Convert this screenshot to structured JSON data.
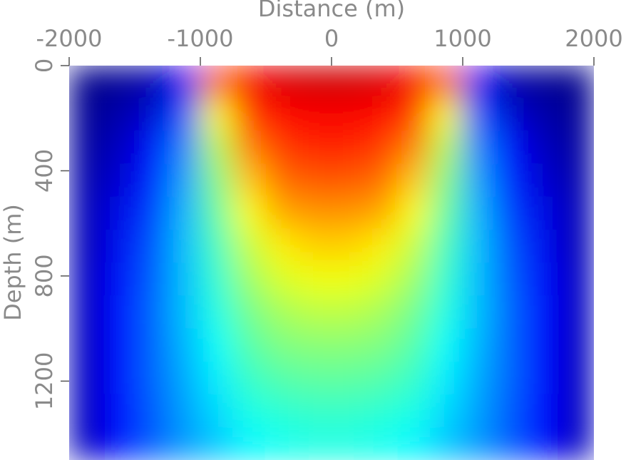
{
  "chart_data": {
    "type": "heatmap",
    "xlabel": "Distance (m)",
    "ylabel": "Depth (m)",
    "xlim": [
      -2000,
      2000
    ],
    "ylim": [
      0,
      1500
    ],
    "xticks": [
      -2000,
      -1000,
      0,
      1000,
      2000
    ],
    "yticks": [
      0,
      400,
      800,
      1200
    ],
    "colormap": "jet",
    "vlim": [
      0,
      1
    ],
    "x": [
      -1875,
      -1625,
      -1375,
      -1125,
      -875,
      -625,
      -375,
      -125,
      125,
      375,
      625,
      875,
      1125,
      1375,
      1625,
      1875
    ],
    "y": [
      62.5,
      187.5,
      312.5,
      437.5,
      562.5,
      687.5,
      812.5,
      937.5,
      1062.5,
      1187.5,
      1312.5,
      1437.5
    ],
    "values": [
      [
        0.01,
        0.02,
        0.04,
        0.12,
        0.78,
        0.88,
        0.91,
        0.92,
        0.92,
        0.91,
        0.88,
        0.78,
        0.12,
        0.04,
        0.02,
        0.01
      ],
      [
        0.02,
        0.04,
        0.08,
        0.2,
        0.62,
        0.82,
        0.87,
        0.88,
        0.88,
        0.87,
        0.82,
        0.62,
        0.2,
        0.08,
        0.04,
        0.02
      ],
      [
        0.03,
        0.06,
        0.12,
        0.25,
        0.55,
        0.75,
        0.82,
        0.84,
        0.84,
        0.82,
        0.75,
        0.55,
        0.25,
        0.12,
        0.06,
        0.03
      ],
      [
        0.04,
        0.08,
        0.15,
        0.28,
        0.5,
        0.68,
        0.77,
        0.79,
        0.79,
        0.77,
        0.68,
        0.5,
        0.28,
        0.15,
        0.08,
        0.04
      ],
      [
        0.05,
        0.1,
        0.18,
        0.3,
        0.47,
        0.62,
        0.71,
        0.73,
        0.73,
        0.71,
        0.62,
        0.47,
        0.3,
        0.18,
        0.1,
        0.05
      ],
      [
        0.05,
        0.11,
        0.2,
        0.31,
        0.44,
        0.57,
        0.64,
        0.67,
        0.67,
        0.64,
        0.57,
        0.44,
        0.31,
        0.2,
        0.11,
        0.05
      ],
      [
        0.06,
        0.12,
        0.21,
        0.31,
        0.42,
        0.53,
        0.59,
        0.61,
        0.61,
        0.59,
        0.53,
        0.42,
        0.31,
        0.21,
        0.12,
        0.06
      ],
      [
        0.06,
        0.13,
        0.22,
        0.31,
        0.4,
        0.49,
        0.54,
        0.56,
        0.56,
        0.54,
        0.49,
        0.4,
        0.31,
        0.22,
        0.13,
        0.06
      ],
      [
        0.06,
        0.13,
        0.22,
        0.3,
        0.38,
        0.46,
        0.5,
        0.51,
        0.51,
        0.5,
        0.46,
        0.38,
        0.3,
        0.22,
        0.13,
        0.06
      ],
      [
        0.06,
        0.13,
        0.22,
        0.29,
        0.36,
        0.43,
        0.46,
        0.47,
        0.47,
        0.46,
        0.43,
        0.36,
        0.29,
        0.22,
        0.13,
        0.06
      ],
      [
        0.06,
        0.13,
        0.21,
        0.28,
        0.34,
        0.4,
        0.42,
        0.43,
        0.43,
        0.42,
        0.4,
        0.34,
        0.28,
        0.21,
        0.13,
        0.06
      ],
      [
        0.06,
        0.13,
        0.21,
        0.27,
        0.32,
        0.37,
        0.39,
        0.4,
        0.4,
        0.39,
        0.37,
        0.32,
        0.27,
        0.21,
        0.13,
        0.06
      ]
    ]
  }
}
